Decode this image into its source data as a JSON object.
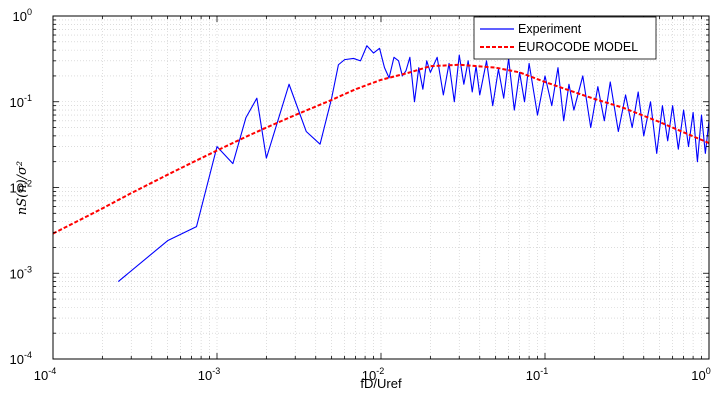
{
  "chart_data": {
    "type": "line",
    "x_scale": "log",
    "y_scale": "log",
    "xlim": [
      0.0001,
      1
    ],
    "ylim": [
      0.0001,
      1
    ],
    "xlabel": "fD/Uref",
    "ylabel": "nS(n)/σ²",
    "grid": true,
    "legend_position": "top-right",
    "x_ticks": [
      {
        "base": "10",
        "exp": "-4",
        "value": 0.0001
      },
      {
        "base": "10",
        "exp": "-3",
        "value": 0.001
      },
      {
        "base": "10",
        "exp": "-2",
        "value": 0.01
      },
      {
        "base": "10",
        "exp": "-1",
        "value": 0.1
      },
      {
        "base": "10",
        "exp": "0",
        "value": 1
      }
    ],
    "y_ticks": [
      {
        "base": "10",
        "exp": "-4",
        "value": 0.0001
      },
      {
        "base": "10",
        "exp": "-3",
        "value": 0.001
      },
      {
        "base": "10",
        "exp": "-2",
        "value": 0.01
      },
      {
        "base": "10",
        "exp": "-1",
        "value": 0.1
      },
      {
        "base": "10",
        "exp": "0",
        "value": 1
      }
    ],
    "series": [
      {
        "name": "Experiment",
        "color": "#0000ff",
        "style": "solid",
        "x": [
          0.00025,
          0.0005,
          0.00075,
          0.001,
          0.00125,
          0.0015,
          0.00175,
          0.002,
          0.00275,
          0.0035,
          0.00425,
          0.005,
          0.0055,
          0.006,
          0.0068,
          0.0075,
          0.0082,
          0.009,
          0.0098,
          0.0105,
          0.0112,
          0.012,
          0.0128,
          0.0135,
          0.0142,
          0.015,
          0.016,
          0.017,
          0.018,
          0.019,
          0.02,
          0.022,
          0.024,
          0.026,
          0.028,
          0.03,
          0.032,
          0.034,
          0.036,
          0.038,
          0.04,
          0.044,
          0.048,
          0.052,
          0.056,
          0.06,
          0.065,
          0.07,
          0.075,
          0.08,
          0.09,
          0.1,
          0.11,
          0.12,
          0.13,
          0.14,
          0.15,
          0.17,
          0.19,
          0.21,
          0.23,
          0.25,
          0.28,
          0.31,
          0.34,
          0.37,
          0.4,
          0.44,
          0.48,
          0.52,
          0.56,
          0.6,
          0.65,
          0.7,
          0.75,
          0.8,
          0.85,
          0.9,
          0.95,
          1.0
        ],
        "y": [
          0.0008,
          0.0024,
          0.0035,
          0.03,
          0.019,
          0.065,
          0.11,
          0.022,
          0.16,
          0.045,
          0.032,
          0.11,
          0.27,
          0.31,
          0.32,
          0.3,
          0.45,
          0.37,
          0.42,
          0.25,
          0.19,
          0.33,
          0.3,
          0.2,
          0.23,
          0.33,
          0.1,
          0.25,
          0.14,
          0.3,
          0.22,
          0.33,
          0.12,
          0.28,
          0.1,
          0.35,
          0.16,
          0.3,
          0.13,
          0.26,
          0.12,
          0.3,
          0.09,
          0.24,
          0.11,
          0.32,
          0.08,
          0.22,
          0.1,
          0.28,
          0.07,
          0.2,
          0.09,
          0.25,
          0.06,
          0.16,
          0.08,
          0.2,
          0.05,
          0.15,
          0.06,
          0.17,
          0.045,
          0.12,
          0.05,
          0.13,
          0.04,
          0.1,
          0.025,
          0.09,
          0.035,
          0.09,
          0.028,
          0.08,
          0.03,
          0.075,
          0.02,
          0.07,
          0.025,
          0.06
        ]
      },
      {
        "name": "EUROCODE MODEL",
        "color": "#ff0000",
        "style": "dashed",
        "x": [
          0.0001,
          0.00015,
          0.0002,
          0.0003,
          0.0005,
          0.0007,
          0.001,
          0.0015,
          0.002,
          0.003,
          0.005,
          0.007,
          0.01,
          0.015,
          0.02,
          0.03,
          0.05,
          0.07,
          0.1,
          0.15,
          0.2,
          0.3,
          0.5,
          0.7,
          1.0
        ],
        "y": [
          0.0029,
          0.0043,
          0.0057,
          0.0086,
          0.0141,
          0.0194,
          0.027,
          0.039,
          0.05,
          0.07,
          0.105,
          0.14,
          0.18,
          0.22,
          0.26,
          0.27,
          0.25,
          0.22,
          0.17,
          0.13,
          0.108,
          0.085,
          0.058,
          0.044,
          0.033
        ]
      }
    ]
  }
}
